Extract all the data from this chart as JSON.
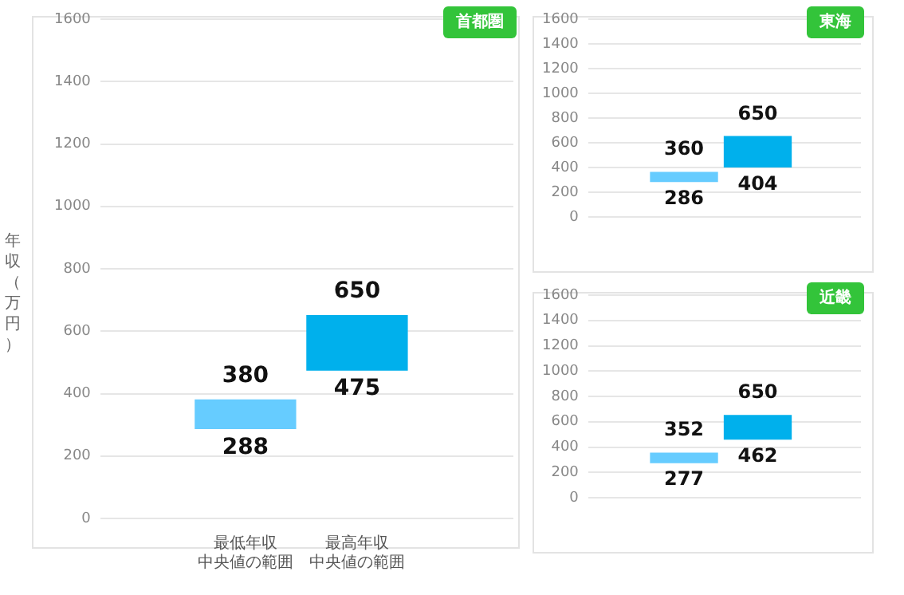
{
  "chart_data": [
    {
      "type": "bar",
      "title": "首都圏",
      "ylabel": "年収（万円）",
      "categories": [
        "最低年収中央値の範囲",
        "最高年収中央値の範囲"
      ],
      "base": [
        288,
        475
      ],
      "values": [
        92,
        175
      ],
      "colors": [
        "#66ccff",
        "#00b0ec"
      ],
      "ylim": [
        0,
        1600
      ],
      "yticks": [
        0,
        200,
        400,
        600,
        800,
        1000,
        1200,
        1400,
        1600
      ],
      "grid": "y",
      "legend": false,
      "annotations": [
        "380",
        "288",
        "650",
        "475"
      ]
    },
    {
      "type": "bar",
      "title": "東海",
      "categories": [
        null,
        null
      ],
      "base": [
        286,
        404
      ],
      "values": [
        74,
        246
      ],
      "colors": [
        "#66ccff",
        "#00b0ec"
      ],
      "ylim": [
        0,
        1600
      ],
      "yticks": [
        0,
        200,
        400,
        600,
        800,
        1000,
        1200,
        1400,
        1600
      ],
      "grid": "y",
      "legend": false,
      "annotations": [
        "360",
        "286",
        "650",
        "404"
      ]
    },
    {
      "type": "bar",
      "title": "近畿",
      "categories": [
        null,
        null
      ],
      "base": [
        277,
        462
      ],
      "values": [
        75,
        188
      ],
      "colors": [
        "#66ccff",
        "#00b0ec"
      ],
      "ylim": [
        0,
        1600
      ],
      "yticks": [
        0,
        200,
        400,
        600,
        800,
        1000,
        1200,
        1400,
        1600
      ],
      "grid": "y",
      "legend": false,
      "annotations": [
        "352",
        "277",
        "650",
        "462"
      ]
    }
  ]
}
